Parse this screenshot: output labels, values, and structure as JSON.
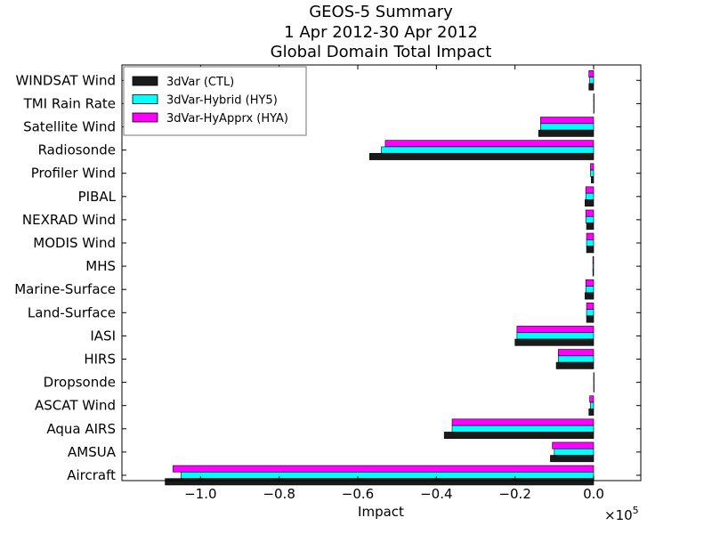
{
  "chart_data": {
    "type": "bar",
    "orientation": "horizontal",
    "title": "GEOS-5 Summary",
    "subtitle1": "1 Apr 2012-30 Apr 2012",
    "subtitle2": "Global Domain Total Impact",
    "xlabel": "Impact",
    "x_offset_label_base": "×10",
    "x_offset_label_exp": "5",
    "xlim": [
      -1.2,
      0.12
    ],
    "xticks": [
      -1.0,
      -0.8,
      -0.6,
      -0.4,
      -0.2,
      0.0
    ],
    "xtick_labels": [
      "−1.0",
      "−0.8",
      "−0.6",
      "−0.4",
      "−0.2",
      "0.0"
    ],
    "grid": false,
    "legend_placement": "upper-left",
    "categories": [
      "Aircraft",
      "AMSUA",
      "Aqua AIRS",
      "ASCAT Wind",
      "Dropsonde",
      "HIRS",
      "IASI",
      "Land-Surface",
      "Marine-Surface",
      "MHS",
      "MODIS Wind",
      "NEXRAD Wind",
      "PIBAL",
      "Profiler Wind",
      "Radiosonde",
      "Satellite Wind",
      "TMI Rain Rate",
      "WINDSAT Wind"
    ],
    "series": [
      {
        "name": "3dVar (CTL)",
        "color": "#1a1a1a",
        "values": [
          -1.09,
          -0.11,
          -0.38,
          -0.012,
          0.0,
          -0.095,
          -0.2,
          -0.018,
          -0.022,
          -0.002,
          -0.018,
          -0.018,
          -0.022,
          -0.006,
          -0.57,
          -0.14,
          0.0,
          -0.012
        ]
      },
      {
        "name": "3dVar-Hybrid (HY5)",
        "color": "#00ffff",
        "values": [
          -1.05,
          -0.1,
          -0.36,
          -0.008,
          0.0,
          -0.09,
          -0.195,
          -0.018,
          -0.02,
          -0.002,
          -0.018,
          -0.02,
          -0.02,
          -0.008,
          -0.54,
          -0.135,
          0.0,
          -0.01
        ]
      },
      {
        "name": "3dVar-HyApprx (HYA)",
        "color": "#ff00ff",
        "values": [
          -1.07,
          -0.105,
          -0.36,
          -0.01,
          0.0,
          -0.09,
          -0.195,
          -0.018,
          -0.02,
          -0.002,
          -0.018,
          -0.02,
          -0.02,
          -0.008,
          -0.53,
          -0.135,
          0.0,
          -0.012
        ]
      }
    ]
  }
}
